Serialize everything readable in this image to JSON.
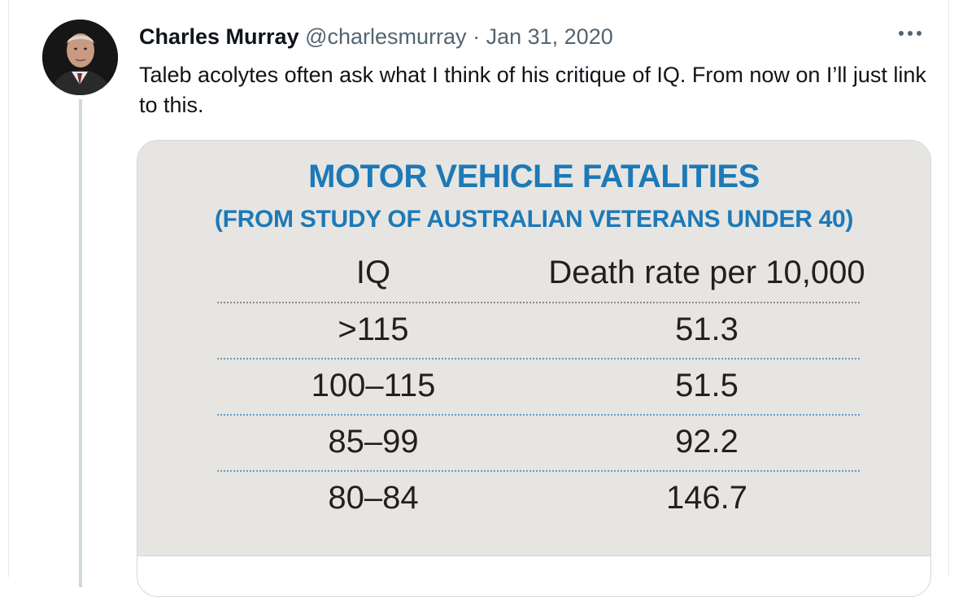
{
  "tweet": {
    "author_name": "Charles Murray",
    "handle": "@charlesmurray",
    "separator": "·",
    "date": "Jan 31, 2020",
    "text": "Taleb acolytes often ask what I think of his critique of IQ. From now on I’ll just link to this."
  },
  "media": {
    "title": "MOTOR VEHICLE FATALITIES",
    "subtitle": "(FROM STUDY OF AUSTRALIAN VETERANS UNDER 40)",
    "columns": [
      "IQ",
      "Death rate per 10,000"
    ],
    "rows": [
      [
        ">115",
        "51.3"
      ],
      [
        "100–115",
        "51.5"
      ],
      [
        "85–99",
        "92.2"
      ],
      [
        "80–84",
        "146.7"
      ]
    ]
  },
  "colors": {
    "title_blue": "#1d79b7",
    "text": "#0f1419",
    "muted": "#536471",
    "media_bg": "#e7e5e2"
  },
  "icons": {
    "more": "more-dots-icon",
    "avatar": "avatar-photo"
  }
}
